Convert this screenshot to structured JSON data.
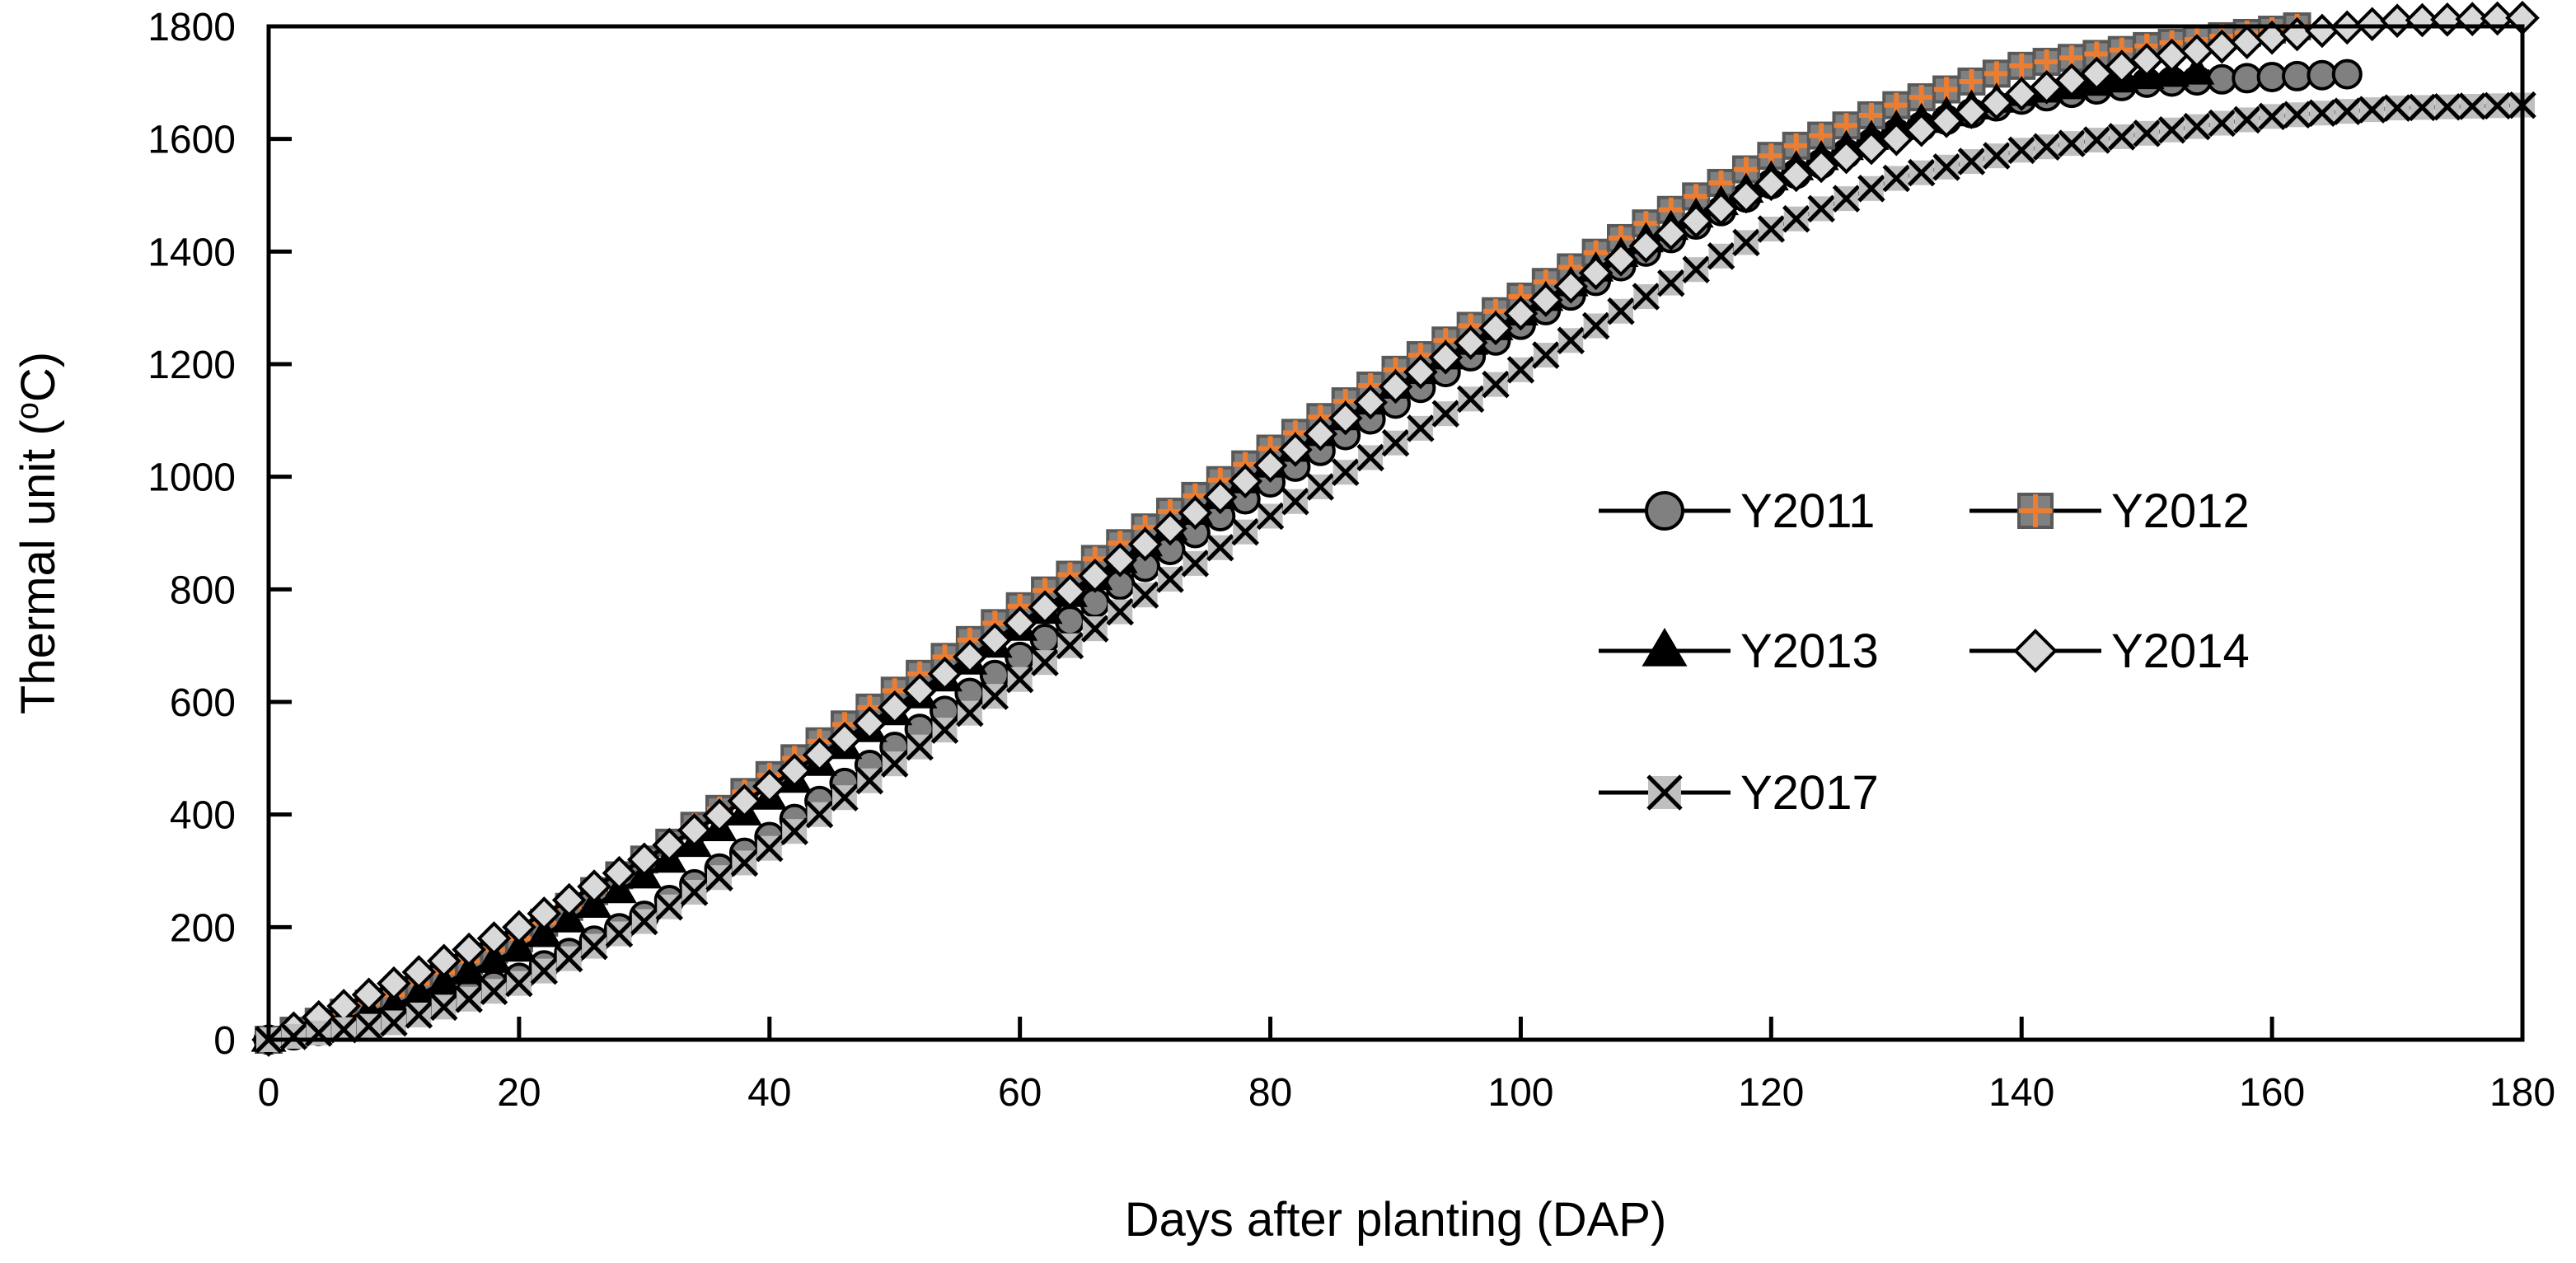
{
  "chart_data": {
    "type": "line",
    "title": "",
    "xlabel": "Days after planting (DAP)",
    "ylabel": "Thermal unit (°C)",
    "ylabel_parts": [
      "Thermal unit (",
      "o",
      "C)"
    ],
    "xlim": [
      0,
      180
    ],
    "ylim": [
      0,
      1800
    ],
    "xticks": [
      0,
      20,
      40,
      60,
      80,
      100,
      120,
      140,
      160,
      180
    ],
    "yticks": [
      0,
      200,
      400,
      600,
      800,
      1000,
      1200,
      1400,
      1600,
      1800
    ],
    "grid": false,
    "legend_position": "center-right",
    "series": [
      {
        "name": "Y2011",
        "marker": "circle",
        "fill": "#808080",
        "line": "#000000",
        "end_day": 166,
        "points": [
          [
            0,
            0
          ],
          [
            10,
            40
          ],
          [
            20,
            110
          ],
          [
            30,
            220
          ],
          [
            40,
            360
          ],
          [
            50,
            520
          ],
          [
            60,
            680
          ],
          [
            70,
            840
          ],
          [
            80,
            990
          ],
          [
            90,
            1130
          ],
          [
            100,
            1270
          ],
          [
            110,
            1400
          ],
          [
            120,
            1520
          ],
          [
            130,
            1610
          ],
          [
            140,
            1670
          ],
          [
            150,
            1700
          ],
          [
            160,
            1710
          ],
          [
            166,
            1715
          ]
        ]
      },
      {
        "name": "Y2012",
        "marker": "square-plus",
        "fill": "#ED7D31",
        "line": "#ED7D31",
        "end_day": 162,
        "points": [
          [
            0,
            0
          ],
          [
            10,
            80
          ],
          [
            20,
            180
          ],
          [
            30,
            320
          ],
          [
            40,
            470
          ],
          [
            50,
            620
          ],
          [
            60,
            770
          ],
          [
            70,
            910
          ],
          [
            80,
            1050
          ],
          [
            90,
            1190
          ],
          [
            100,
            1320
          ],
          [
            110,
            1450
          ],
          [
            120,
            1570
          ],
          [
            130,
            1660
          ],
          [
            140,
            1730
          ],
          [
            150,
            1765
          ],
          [
            162,
            1800
          ]
        ]
      },
      {
        "name": "Y2013",
        "marker": "triangle",
        "fill": "#000000",
        "line": "#000000",
        "end_day": 155,
        "points": [
          [
            0,
            0
          ],
          [
            10,
            60
          ],
          [
            20,
            160
          ],
          [
            30,
            290
          ],
          [
            40,
            430
          ],
          [
            50,
            580
          ],
          [
            60,
            730
          ],
          [
            70,
            880
          ],
          [
            80,
            1020
          ],
          [
            90,
            1160
          ],
          [
            100,
            1290
          ],
          [
            110,
            1420
          ],
          [
            120,
            1530
          ],
          [
            130,
            1620
          ],
          [
            140,
            1680
          ],
          [
            150,
            1710
          ],
          [
            155,
            1720
          ]
        ]
      },
      {
        "name": "Y2014",
        "marker": "diamond",
        "fill": "#D9D9D9",
        "line": "#000000",
        "end_day": 180,
        "points": [
          [
            0,
            0
          ],
          [
            10,
            100
          ],
          [
            20,
            200
          ],
          [
            30,
            320
          ],
          [
            40,
            450
          ],
          [
            50,
            590
          ],
          [
            60,
            740
          ],
          [
            70,
            880
          ],
          [
            80,
            1020
          ],
          [
            90,
            1160
          ],
          [
            100,
            1290
          ],
          [
            110,
            1410
          ],
          [
            120,
            1520
          ],
          [
            130,
            1600
          ],
          [
            140,
            1680
          ],
          [
            150,
            1740
          ],
          [
            160,
            1780
          ],
          [
            170,
            1810
          ],
          [
            180,
            1815
          ]
        ]
      },
      {
        "name": "Y2017",
        "marker": "x",
        "fill": "#BFBFBF",
        "line": "#000000",
        "end_day": 180,
        "points": [
          [
            0,
            0
          ],
          [
            10,
            30
          ],
          [
            20,
            100
          ],
          [
            30,
            210
          ],
          [
            40,
            340
          ],
          [
            50,
            490
          ],
          [
            60,
            640
          ],
          [
            70,
            790
          ],
          [
            80,
            930
          ],
          [
            90,
            1060
          ],
          [
            100,
            1190
          ],
          [
            110,
            1320
          ],
          [
            120,
            1440
          ],
          [
            130,
            1530
          ],
          [
            140,
            1580
          ],
          [
            150,
            1610
          ],
          [
            160,
            1640
          ],
          [
            170,
            1655
          ],
          [
            180,
            1660
          ]
        ]
      }
    ]
  }
}
